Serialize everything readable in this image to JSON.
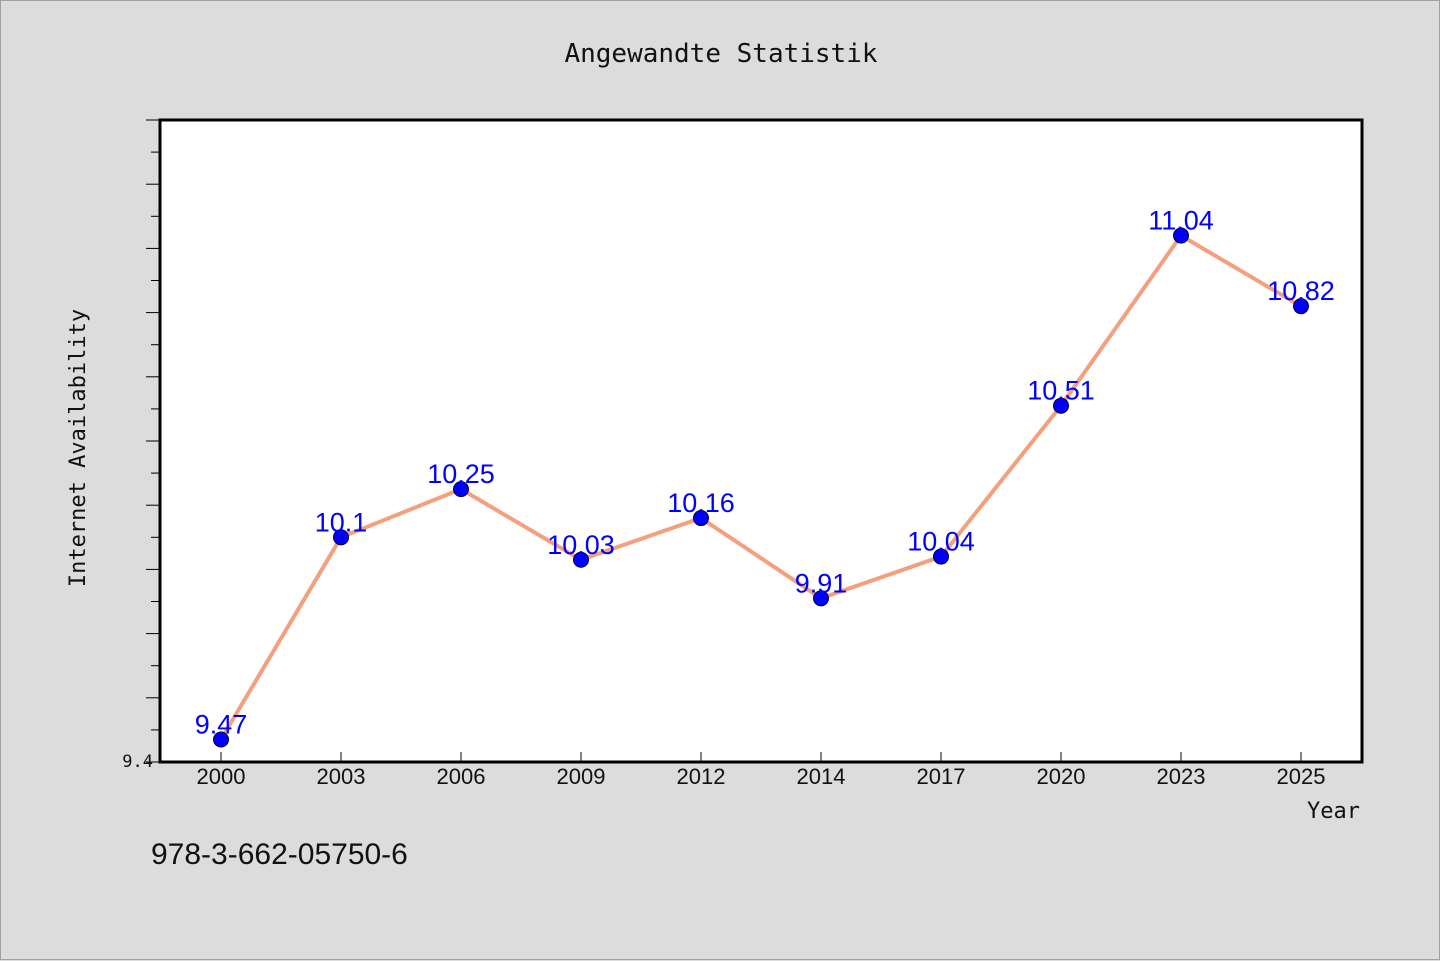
{
  "chart_data": {
    "type": "line",
    "title": "Angewandte Statistik",
    "xlabel": "Year",
    "ylabel": "Internet Availability",
    "categories": [
      "2000",
      "2003",
      "2006",
      "2009",
      "2012",
      "2014",
      "2017",
      "2020",
      "2023",
      "2025"
    ],
    "series": [
      {
        "values": [
          9.47,
          10.1,
          10.25,
          10.03,
          10.16,
          9.91,
          10.04,
          10.51,
          11.04,
          10.82
        ]
      }
    ],
    "data_labels": [
      "9.47",
      "10.1",
      "10.25",
      "10.03",
      "10.16",
      "9.91",
      "10.04",
      "10.51",
      "11.04",
      "10.82"
    ],
    "ylim": [
      9.4,
      11.4
    ],
    "yticks_labeled": [
      "9.4"
    ],
    "grid": false,
    "colors": {
      "line": "#f4a07f",
      "marker": "#0000ff",
      "label": "#0000ff",
      "background": "#dcdcdc",
      "plot_area": "#ffffff"
    }
  },
  "footer": {
    "isbn": "978-3-662-05750-6"
  }
}
